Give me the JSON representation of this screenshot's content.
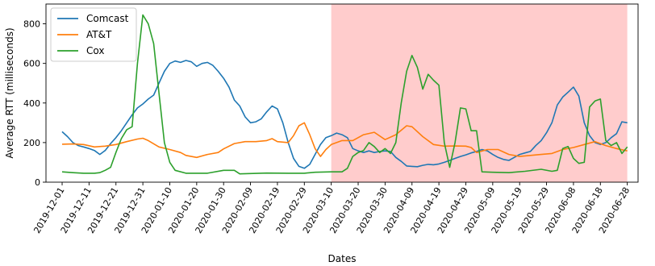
{
  "chart_data": {
    "type": "line",
    "xlabel": "Dates",
    "ylabel": "Average RTT (milliseconds)",
    "ylim": [
      0,
      900
    ],
    "y_ticks": [
      0,
      200,
      400,
      600,
      800
    ],
    "x_ticks": [
      "2019-12-01",
      "2019-12-11",
      "2019-12-21",
      "2019-12-31",
      "2020-01-10",
      "2020-01-20",
      "2020-01-30",
      "2020-02-09",
      "2020-02-19",
      "2020-02-29",
      "2020-03-10",
      "2020-03-20",
      "2020-03-30",
      "2020-04-09",
      "2020-04-19",
      "2020-04-29",
      "2020-05-09",
      "2020-05-19",
      "2020-05-29",
      "2020-06-08",
      "2020-06-18",
      "2020-06-28"
    ],
    "xlim": [
      "2019-11-25",
      "2020-07-02"
    ],
    "shaded_region": {
      "start": "2020-03-10",
      "end": "2020-06-28",
      "color": "#ffcccc"
    },
    "legend_position": "top-left",
    "grid": false,
    "series": [
      {
        "name": "Comcast",
        "color": "#1f77b4",
        "points": [
          [
            "2019-12-01",
            255
          ],
          [
            "2019-12-03",
            230
          ],
          [
            "2019-12-05",
            200
          ],
          [
            "2019-12-07",
            185
          ],
          [
            "2019-12-09",
            178
          ],
          [
            "2019-12-11",
            170
          ],
          [
            "2019-12-13",
            160
          ],
          [
            "2019-12-15",
            140
          ],
          [
            "2019-12-17",
            160
          ],
          [
            "2019-12-19",
            195
          ],
          [
            "2019-12-21",
            225
          ],
          [
            "2019-12-23",
            260
          ],
          [
            "2019-12-25",
            300
          ],
          [
            "2019-12-27",
            340
          ],
          [
            "2019-12-29",
            375
          ],
          [
            "2019-12-31",
            395
          ],
          [
            "2020-01-02",
            420
          ],
          [
            "2020-01-04",
            440
          ],
          [
            "2020-01-06",
            500
          ],
          [
            "2020-01-08",
            560
          ],
          [
            "2020-01-10",
            600
          ],
          [
            "2020-01-12",
            612
          ],
          [
            "2020-01-14",
            605
          ],
          [
            "2020-01-16",
            615
          ],
          [
            "2020-01-18",
            608
          ],
          [
            "2020-01-20",
            585
          ],
          [
            "2020-01-22",
            600
          ],
          [
            "2020-01-24",
            605
          ],
          [
            "2020-01-26",
            590
          ],
          [
            "2020-01-28",
            560
          ],
          [
            "2020-01-30",
            525
          ],
          [
            "2020-02-01",
            480
          ],
          [
            "2020-02-03",
            415
          ],
          [
            "2020-02-05",
            385
          ],
          [
            "2020-02-07",
            330
          ],
          [
            "2020-02-09",
            300
          ],
          [
            "2020-02-11",
            305
          ],
          [
            "2020-02-13",
            320
          ],
          [
            "2020-02-15",
            355
          ],
          [
            "2020-02-17",
            385
          ],
          [
            "2020-02-19",
            370
          ],
          [
            "2020-02-21",
            300
          ],
          [
            "2020-02-23",
            200
          ],
          [
            "2020-02-25",
            120
          ],
          [
            "2020-02-27",
            80
          ],
          [
            "2020-02-29",
            70
          ],
          [
            "2020-03-02",
            90
          ],
          [
            "2020-03-04",
            140
          ],
          [
            "2020-03-06",
            190
          ],
          [
            "2020-03-08",
            225
          ],
          [
            "2020-03-10",
            235
          ],
          [
            "2020-03-12",
            248
          ],
          [
            "2020-03-14",
            240
          ],
          [
            "2020-03-16",
            225
          ],
          [
            "2020-03-18",
            170
          ],
          [
            "2020-03-20",
            158
          ],
          [
            "2020-03-22",
            150
          ],
          [
            "2020-03-24",
            158
          ],
          [
            "2020-03-26",
            150
          ],
          [
            "2020-03-28",
            155
          ],
          [
            "2020-03-30",
            158
          ],
          [
            "2020-04-01",
            155
          ],
          [
            "2020-04-03",
            125
          ],
          [
            "2020-04-05",
            105
          ],
          [
            "2020-04-07",
            82
          ],
          [
            "2020-04-09",
            80
          ],
          [
            "2020-04-11",
            78
          ],
          [
            "2020-04-13",
            85
          ],
          [
            "2020-04-15",
            90
          ],
          [
            "2020-04-17",
            88
          ],
          [
            "2020-04-19",
            92
          ],
          [
            "2020-04-21",
            100
          ],
          [
            "2020-04-23",
            110
          ],
          [
            "2020-04-25",
            120
          ],
          [
            "2020-04-27",
            130
          ],
          [
            "2020-04-29",
            138
          ],
          [
            "2020-05-01",
            148
          ],
          [
            "2020-05-03",
            155
          ],
          [
            "2020-05-05",
            165
          ],
          [
            "2020-05-07",
            158
          ],
          [
            "2020-05-09",
            140
          ],
          [
            "2020-05-11",
            125
          ],
          [
            "2020-05-13",
            115
          ],
          [
            "2020-05-15",
            110
          ],
          [
            "2020-05-17",
            125
          ],
          [
            "2020-05-19",
            140
          ],
          [
            "2020-05-21",
            148
          ],
          [
            "2020-05-23",
            155
          ],
          [
            "2020-05-25",
            185
          ],
          [
            "2020-05-27",
            210
          ],
          [
            "2020-05-29",
            250
          ],
          [
            "2020-05-31",
            300
          ],
          [
            "2020-06-02",
            390
          ],
          [
            "2020-06-04",
            430
          ],
          [
            "2020-06-06",
            455
          ],
          [
            "2020-06-08",
            480
          ],
          [
            "2020-06-10",
            435
          ],
          [
            "2020-06-12",
            300
          ],
          [
            "2020-06-14",
            235
          ],
          [
            "2020-06-16",
            200
          ],
          [
            "2020-06-18",
            190
          ],
          [
            "2020-06-20",
            200
          ],
          [
            "2020-06-22",
            225
          ],
          [
            "2020-06-24",
            245
          ],
          [
            "2020-06-26",
            305
          ],
          [
            "2020-06-28",
            300
          ]
        ]
      },
      {
        "name": "AT&T",
        "color": "#ff7f0e",
        "points": [
          [
            "2019-12-01",
            192
          ],
          [
            "2019-12-05",
            193
          ],
          [
            "2019-12-09",
            190
          ],
          [
            "2019-12-13",
            178
          ],
          [
            "2019-12-17",
            182
          ],
          [
            "2019-12-21",
            190
          ],
          [
            "2019-12-25",
            205
          ],
          [
            "2019-12-29",
            218
          ],
          [
            "2019-12-31",
            222
          ],
          [
            "2020-01-02",
            210
          ],
          [
            "2020-01-06",
            178
          ],
          [
            "2020-01-10",
            165
          ],
          [
            "2020-01-14",
            150
          ],
          [
            "2020-01-16",
            135
          ],
          [
            "2020-01-20",
            125
          ],
          [
            "2020-01-24",
            140
          ],
          [
            "2020-01-28",
            150
          ],
          [
            "2020-01-30",
            168
          ],
          [
            "2020-02-03",
            195
          ],
          [
            "2020-02-07",
            205
          ],
          [
            "2020-02-11",
            205
          ],
          [
            "2020-02-15",
            210
          ],
          [
            "2020-02-17",
            220
          ],
          [
            "2020-02-19",
            205
          ],
          [
            "2020-02-23",
            200
          ],
          [
            "2020-02-25",
            235
          ],
          [
            "2020-02-27",
            285
          ],
          [
            "2020-02-29",
            300
          ],
          [
            "2020-03-02",
            240
          ],
          [
            "2020-03-04",
            170
          ],
          [
            "2020-03-06",
            130
          ],
          [
            "2020-03-08",
            165
          ],
          [
            "2020-03-10",
            190
          ],
          [
            "2020-03-14",
            210
          ],
          [
            "2020-03-18",
            210
          ],
          [
            "2020-03-22",
            240
          ],
          [
            "2020-03-26",
            252
          ],
          [
            "2020-03-30",
            215
          ],
          [
            "2020-04-03",
            240
          ],
          [
            "2020-04-07",
            285
          ],
          [
            "2020-04-09",
            280
          ],
          [
            "2020-04-13",
            230
          ],
          [
            "2020-04-17",
            190
          ],
          [
            "2020-04-21",
            182
          ],
          [
            "2020-04-25",
            183
          ],
          [
            "2020-04-29",
            182
          ],
          [
            "2020-05-01",
            175
          ],
          [
            "2020-05-03",
            150
          ],
          [
            "2020-05-07",
            165
          ],
          [
            "2020-05-11",
            165
          ],
          [
            "2020-05-15",
            140
          ],
          [
            "2020-05-19",
            130
          ],
          [
            "2020-05-23",
            135
          ],
          [
            "2020-05-27",
            140
          ],
          [
            "2020-05-31",
            145
          ],
          [
            "2020-06-04",
            165
          ],
          [
            "2020-06-08",
            175
          ],
          [
            "2020-06-12",
            190
          ],
          [
            "2020-06-16",
            205
          ],
          [
            "2020-06-20",
            185
          ],
          [
            "2020-06-24",
            170
          ],
          [
            "2020-06-28",
            158
          ]
        ]
      },
      {
        "name": "Cox",
        "color": "#2ca02c",
        "points": [
          [
            "2019-12-01",
            52
          ],
          [
            "2019-12-05",
            48
          ],
          [
            "2019-12-09",
            45
          ],
          [
            "2019-12-13",
            45
          ],
          [
            "2019-12-15",
            48
          ],
          [
            "2019-12-17",
            60
          ],
          [
            "2019-12-19",
            75
          ],
          [
            "2019-12-21",
            150
          ],
          [
            "2019-12-23",
            220
          ],
          [
            "2019-12-25",
            265
          ],
          [
            "2019-12-27",
            280
          ],
          [
            "2019-12-29",
            600
          ],
          [
            "2019-12-31",
            845
          ],
          [
            "2020-01-02",
            800
          ],
          [
            "2020-01-04",
            700
          ],
          [
            "2020-01-06",
            450
          ],
          [
            "2020-01-08",
            200
          ],
          [
            "2020-01-10",
            100
          ],
          [
            "2020-01-12",
            60
          ],
          [
            "2020-01-16",
            45
          ],
          [
            "2020-01-24",
            45
          ],
          [
            "2020-01-30",
            60
          ],
          [
            "2020-02-03",
            60
          ],
          [
            "2020-02-05",
            42
          ],
          [
            "2020-02-15",
            46
          ],
          [
            "2020-02-23",
            45
          ],
          [
            "2020-02-29",
            45
          ],
          [
            "2020-03-04",
            50
          ],
          [
            "2020-03-10",
            52
          ],
          [
            "2020-03-14",
            52
          ],
          [
            "2020-03-16",
            70
          ],
          [
            "2020-03-18",
            130
          ],
          [
            "2020-03-20",
            150
          ],
          [
            "2020-03-22",
            160
          ],
          [
            "2020-03-24",
            200
          ],
          [
            "2020-03-26",
            180
          ],
          [
            "2020-03-28",
            150
          ],
          [
            "2020-03-30",
            170
          ],
          [
            "2020-04-01",
            145
          ],
          [
            "2020-04-03",
            200
          ],
          [
            "2020-04-05",
            400
          ],
          [
            "2020-04-07",
            560
          ],
          [
            "2020-04-09",
            640
          ],
          [
            "2020-04-11",
            580
          ],
          [
            "2020-04-13",
            470
          ],
          [
            "2020-04-15",
            545
          ],
          [
            "2020-04-17",
            515
          ],
          [
            "2020-04-19",
            490
          ],
          [
            "2020-04-21",
            200
          ],
          [
            "2020-04-23",
            75
          ],
          [
            "2020-04-25",
            200
          ],
          [
            "2020-04-27",
            375
          ],
          [
            "2020-04-29",
            370
          ],
          [
            "2020-05-01",
            260
          ],
          [
            "2020-05-03",
            260
          ],
          [
            "2020-05-05",
            52
          ],
          [
            "2020-05-09",
            50
          ],
          [
            "2020-05-15",
            48
          ],
          [
            "2020-05-21",
            55
          ],
          [
            "2020-05-27",
            65
          ],
          [
            "2020-05-31",
            55
          ],
          [
            "2020-06-02",
            60
          ],
          [
            "2020-06-04",
            170
          ],
          [
            "2020-06-06",
            180
          ],
          [
            "2020-06-08",
            120
          ],
          [
            "2020-06-10",
            95
          ],
          [
            "2020-06-12",
            100
          ],
          [
            "2020-06-14",
            380
          ],
          [
            "2020-06-16",
            410
          ],
          [
            "2020-06-18",
            420
          ],
          [
            "2020-06-20",
            210
          ],
          [
            "2020-06-22",
            185
          ],
          [
            "2020-06-24",
            200
          ],
          [
            "2020-06-26",
            145
          ],
          [
            "2020-06-28",
            178
          ]
        ]
      }
    ]
  }
}
